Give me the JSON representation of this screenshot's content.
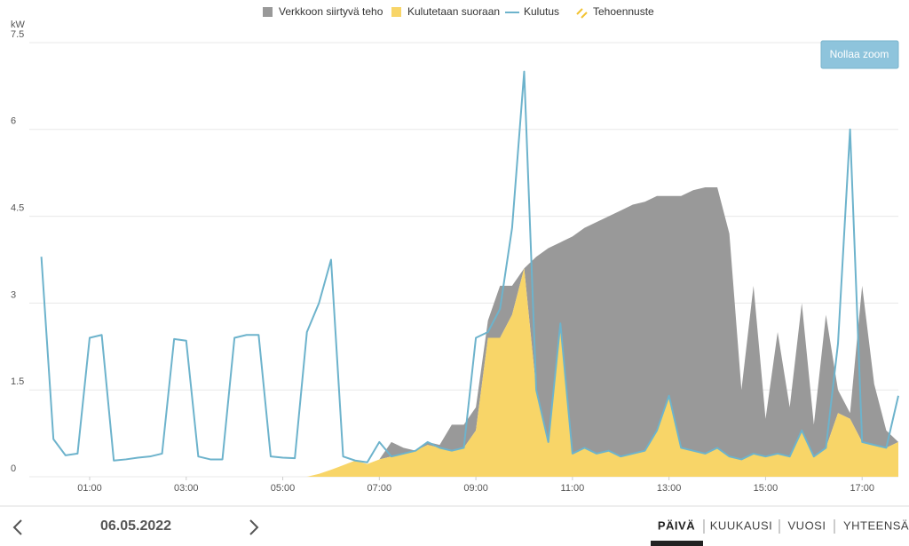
{
  "chart_data": {
    "type": "stacked-area-line",
    "y_label": "kW",
    "x": [
      0,
      0.25,
      0.5,
      0.75,
      1,
      1.25,
      1.5,
      1.75,
      2,
      2.25,
      2.5,
      2.75,
      3,
      3.25,
      3.5,
      3.75,
      4,
      4.25,
      4.5,
      4.75,
      5,
      5.25,
      5.5,
      5.75,
      6,
      6.25,
      6.5,
      6.75,
      7,
      7.25,
      7.5,
      7.75,
      8,
      8.25,
      8.5,
      8.75,
      9,
      9.25,
      9.5,
      9.75,
      10,
      10.25,
      10.5,
      10.75,
      11,
      11.25,
      11.5,
      11.75,
      12,
      12.25,
      12.5,
      12.75,
      13,
      13.25,
      13.5,
      13.75,
      14,
      14.25,
      14.5,
      14.75,
      15,
      15.25,
      15.5,
      15.75,
      16,
      16.25,
      16.5,
      16.75,
      17,
      17.25,
      17.5,
      17.75
    ],
    "xlim": [
      -0.25,
      17.75
    ],
    "xticks": [
      {
        "value": 1,
        "label": "01:00"
      },
      {
        "value": 3,
        "label": "03:00"
      },
      {
        "value": 5,
        "label": "05:00"
      },
      {
        "value": 7,
        "label": "07:00"
      },
      {
        "value": 9,
        "label": "09:00"
      },
      {
        "value": 11,
        "label": "11:00"
      },
      {
        "value": 13,
        "label": "13:00"
      },
      {
        "value": 15,
        "label": "15:00"
      },
      {
        "value": 17,
        "label": "17:00"
      }
    ],
    "ylim": [
      0,
      7.5
    ],
    "yticks": [
      0,
      1.5,
      3,
      4.5,
      6,
      7.5
    ],
    "grid": true,
    "legend": "top",
    "series": [
      {
        "name": "Verkkoon siirtyvä teho",
        "kind": "stacked-area",
        "color": "#999999",
        "values": [
          null,
          null,
          null,
          null,
          null,
          null,
          null,
          null,
          null,
          null,
          null,
          null,
          null,
          null,
          null,
          null,
          null,
          null,
          null,
          null,
          null,
          null,
          null,
          null,
          null,
          null,
          null,
          null,
          0,
          0.25,
          0.1,
          0,
          0.05,
          0.05,
          0.45,
          0.4,
          0.4,
          0.3,
          0.9,
          0.5,
          0,
          2.3,
          3.35,
          1.4,
          3.75,
          3.8,
          4.0,
          4.05,
          4.25,
          4.3,
          4.3,
          4.05,
          3.45,
          4.35,
          4.5,
          4.6,
          4.5,
          3.85,
          1.2,
          2.9,
          0.65,
          2.1,
          0.85,
          2.2,
          0.55,
          2.3,
          0.4,
          0.1,
          2.7,
          1.05,
          0.3,
          0
        ]
      },
      {
        "name": "Kulutetaan suoraan",
        "kind": "area",
        "color": "#f8d568",
        "values": [
          null,
          null,
          null,
          null,
          null,
          null,
          null,
          null,
          null,
          null,
          null,
          null,
          null,
          null,
          null,
          null,
          null,
          null,
          null,
          null,
          null,
          null,
          0,
          0.05,
          0.12,
          0.2,
          0.28,
          0.22,
          0.3,
          0.35,
          0.4,
          0.45,
          0.55,
          0.5,
          0.45,
          0.5,
          0.8,
          2.4,
          2.4,
          2.8,
          3.6,
          1.5,
          0.6,
          2.65,
          0.4,
          0.5,
          0.4,
          0.45,
          0.35,
          0.4,
          0.45,
          0.8,
          1.4,
          0.5,
          0.45,
          0.4,
          0.5,
          0.35,
          0.3,
          0.4,
          0.35,
          0.4,
          0.35,
          0.8,
          0.35,
          0.5,
          1.1,
          1.0,
          0.6,
          0.55,
          0.5,
          0.6
        ]
      },
      {
        "name": "Kulutus",
        "kind": "line",
        "color": "#6db3cc",
        "values": [
          3.8,
          0.65,
          0.37,
          0.4,
          2.4,
          2.45,
          0.28,
          0.3,
          0.33,
          0.35,
          0.4,
          2.38,
          2.35,
          0.35,
          0.3,
          0.3,
          2.4,
          2.45,
          2.45,
          0.35,
          0.33,
          0.32,
          2.5,
          3.0,
          3.75,
          0.35,
          0.28,
          0.25,
          0.6,
          0.35,
          0.4,
          0.45,
          0.6,
          0.5,
          0.45,
          0.5,
          2.4,
          2.5,
          2.9,
          4.3,
          7.0,
          1.5,
          0.6,
          2.65,
          0.4,
          0.5,
          0.4,
          0.45,
          0.35,
          0.4,
          0.45,
          0.8,
          1.4,
          0.5,
          0.45,
          0.4,
          0.5,
          0.35,
          0.3,
          0.4,
          0.35,
          0.4,
          0.35,
          0.8,
          0.35,
          0.5,
          2.3,
          6.0,
          0.6,
          0.55,
          0.5,
          1.4
        ]
      },
      {
        "name": "Tehoennuste",
        "kind": "forecast",
        "color": "#f2c230",
        "values": [
          null,
          null,
          null,
          null,
          null,
          null,
          null,
          null,
          null,
          null,
          null,
          null,
          null,
          null,
          null,
          null,
          null,
          null,
          null,
          null,
          null,
          null,
          null,
          null,
          null,
          null,
          null,
          null,
          null,
          null,
          null,
          null,
          null,
          null,
          null,
          null,
          null,
          null,
          null,
          null,
          null,
          null,
          null,
          null,
          null,
          null,
          null,
          null,
          null,
          null,
          null,
          null,
          null,
          null,
          null,
          null,
          null,
          null,
          null,
          null,
          null,
          null,
          null,
          null,
          null,
          null,
          null,
          null,
          null,
          null,
          null,
          null
        ]
      }
    ]
  },
  "ui": {
    "reset_zoom": "Nollaa zoom",
    "date": "06.05.2022",
    "tabs": [
      "PÄIVÄ",
      "KUUKAUSI",
      "VUOSI",
      "YHTEENSÄ"
    ]
  }
}
